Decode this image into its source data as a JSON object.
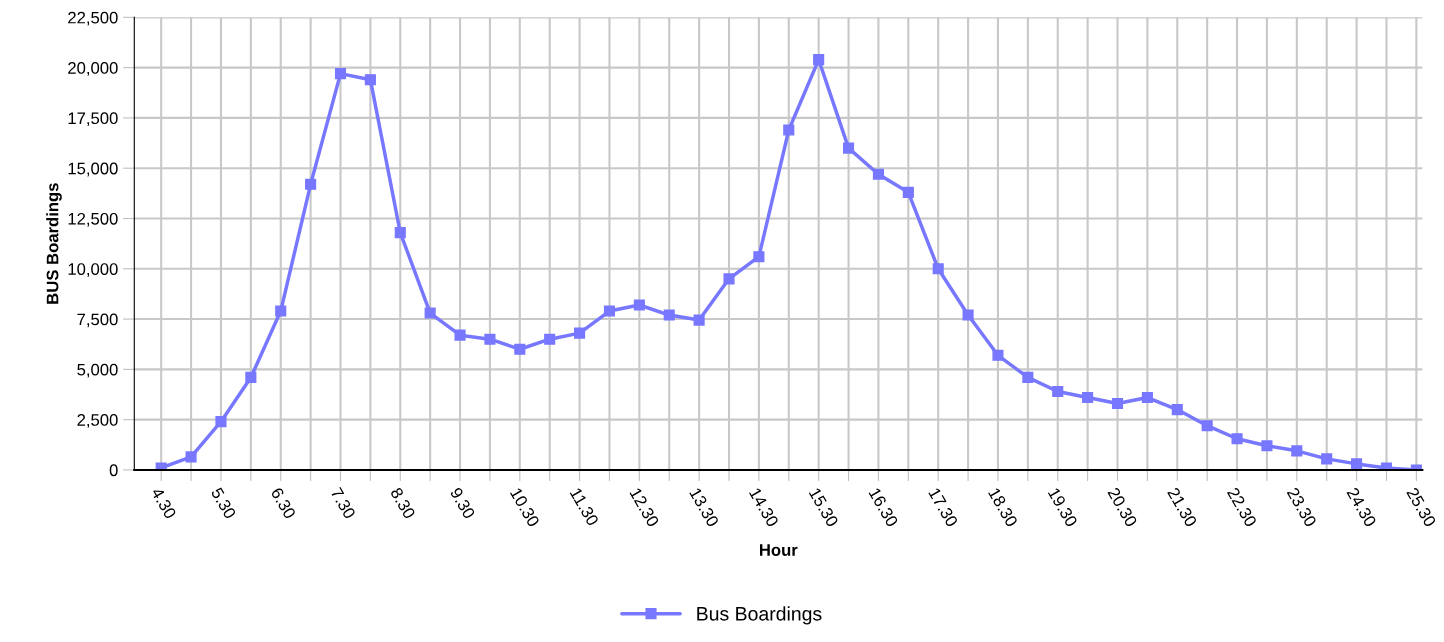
{
  "chart_data": {
    "type": "line",
    "xlabel": "Hour",
    "ylabel": "BUS Boardings",
    "categories": [
      "4.30",
      null,
      "5.30",
      null,
      "6.30",
      null,
      "7.30",
      null,
      "8.30",
      null,
      "9.30",
      null,
      "10.30",
      null,
      "11.30",
      null,
      "12.30",
      null,
      "13.30",
      null,
      "14.30",
      null,
      "15.30",
      null,
      "16.30",
      null,
      "17.30",
      null,
      "18.30",
      null,
      "19.30",
      null,
      "20.30",
      null,
      "21.30",
      null,
      "22.30",
      null,
      "23.30",
      null,
      "24.30",
      null,
      "25.30"
    ],
    "series": [
      {
        "name": "Bus Boardings",
        "color": "#7777ff",
        "values": [
          100,
          650,
          2400,
          4600,
          7900,
          14200,
          19700,
          19400,
          11800,
          7800,
          6700,
          6500,
          6000,
          6500,
          6800,
          7900,
          8200,
          7700,
          7450,
          9500,
          10600,
          16900,
          20400,
          16000,
          14700,
          13800,
          10000,
          7700,
          5700,
          4600,
          3900,
          3600,
          3300,
          3600,
          3000,
          2200,
          1550,
          1200,
          950,
          550,
          300,
          100,
          0
        ]
      }
    ],
    "ylim": [
      0,
      22500
    ],
    "yticks": [
      {
        "value": 0,
        "label": "0"
      },
      {
        "value": 2500,
        "label": "2,500"
      },
      {
        "value": 5000,
        "label": "5,000"
      },
      {
        "value": 7500,
        "label": "7,500"
      },
      {
        "value": 10000,
        "label": "10,000"
      },
      {
        "value": 12500,
        "label": "12,500"
      },
      {
        "value": 15000,
        "label": "15,000"
      },
      {
        "value": 17500,
        "label": "17,500"
      },
      {
        "value": 20000,
        "label": "20,000"
      },
      {
        "value": 22500,
        "label": "22,500"
      }
    ],
    "grid": true,
    "legend": "bottom",
    "marker": "square",
    "line_style": "solid"
  }
}
